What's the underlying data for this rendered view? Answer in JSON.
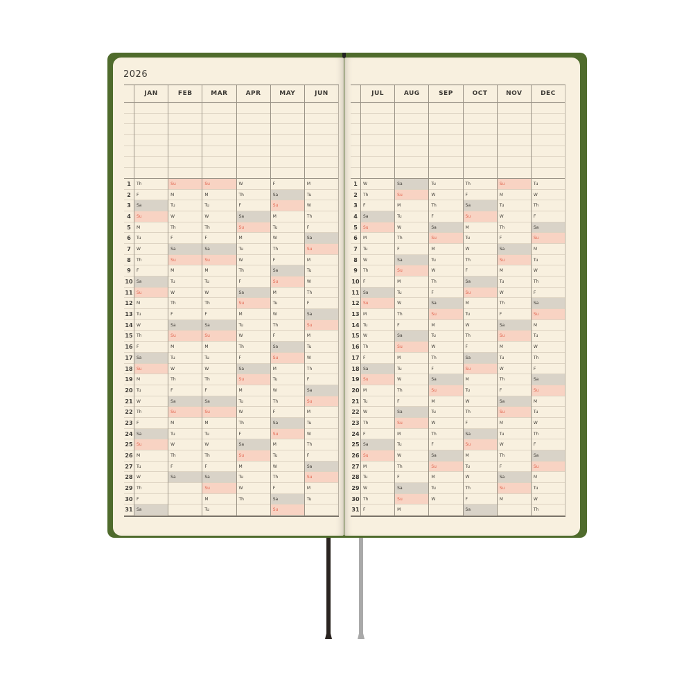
{
  "year": "2026",
  "day_numbers": [
    "1",
    "2",
    "3",
    "4",
    "5",
    "6",
    "7",
    "8",
    "9",
    "10",
    "11",
    "12",
    "13",
    "14",
    "15",
    "16",
    "17",
    "18",
    "19",
    "20",
    "21",
    "22",
    "23",
    "24",
    "25",
    "26",
    "27",
    "28",
    "29",
    "30",
    "31"
  ],
  "colors": {
    "cover": "#4f6b2c",
    "page": "#f8f0df",
    "saturday_fill": "#d9d3c8",
    "sunday_fill": "#f8d3c3",
    "sunday_text": "#e2634d"
  },
  "left_page": {
    "months": [
      {
        "name": "JAN",
        "days": "Th F Sa Su M Tu W Th F Sa Su M Tu W Th F Sa Su M Tu W Th F Sa Su M Tu W Th F Sa"
      },
      {
        "name": "FEB",
        "days": "Su M Tu W Th F Sa Su M Tu W Th F Sa Su M Tu W Th F Sa Su M Tu W Th F Sa"
      },
      {
        "name": "MAR",
        "days": "Su M Tu W Th F Sa Su M Tu W Th F Sa Su M Tu W Th F Sa Su M Tu W Th F Sa Su M Tu"
      },
      {
        "name": "APR",
        "days": "W Th F Sa Su M Tu W Th F Sa Su M Tu W Th F Sa Su M Tu W Th F Sa Su M Tu W Th"
      },
      {
        "name": "MAY",
        "days": "F Sa Su M Tu W Th F Sa Su M Tu W Th F Sa Su M Tu W Th F Sa Su M Tu W Th F Sa Su"
      },
      {
        "name": "JUN",
        "days": "M Tu W Th F Sa Su M Tu W Th F Sa Su M Tu W Th F Sa Su M Tu W Th F Sa Su M Tu"
      }
    ]
  },
  "right_page": {
    "months": [
      {
        "name": "JUL",
        "days": "W Th F Sa Su M Tu W Th F Sa Su M Tu W Th F Sa Su M Tu W Th F Sa Su M Tu W Th F"
      },
      {
        "name": "AUG",
        "days": "Sa Su M Tu W Th F Sa Su M Tu W Th F Sa Su M Tu W Th F Sa Su M Tu W Th F Sa Su M"
      },
      {
        "name": "SEP",
        "days": "Tu W Th F Sa Su M Tu W Th F Sa Su M Tu W Th F Sa Su M Tu W Th F Sa Su M Tu W"
      },
      {
        "name": "OCT",
        "days": "Th F Sa Su M Tu W Th F Sa Su M Tu W Th F Sa Su M Tu W Th F Sa Su M Tu W Th F Sa"
      },
      {
        "name": "NOV",
        "days": "Su M Tu W Th F Sa Su M Tu W Th F Sa Su M Tu W Th F Sa Su M Tu W Th F Sa Su M"
      },
      {
        "name": "DEC",
        "days": "Tu W Th F Sa Su M Tu W Th F Sa Su M Tu W Th F Sa Su M Tu W Th F Sa Su M Tu W Th"
      }
    ]
  }
}
